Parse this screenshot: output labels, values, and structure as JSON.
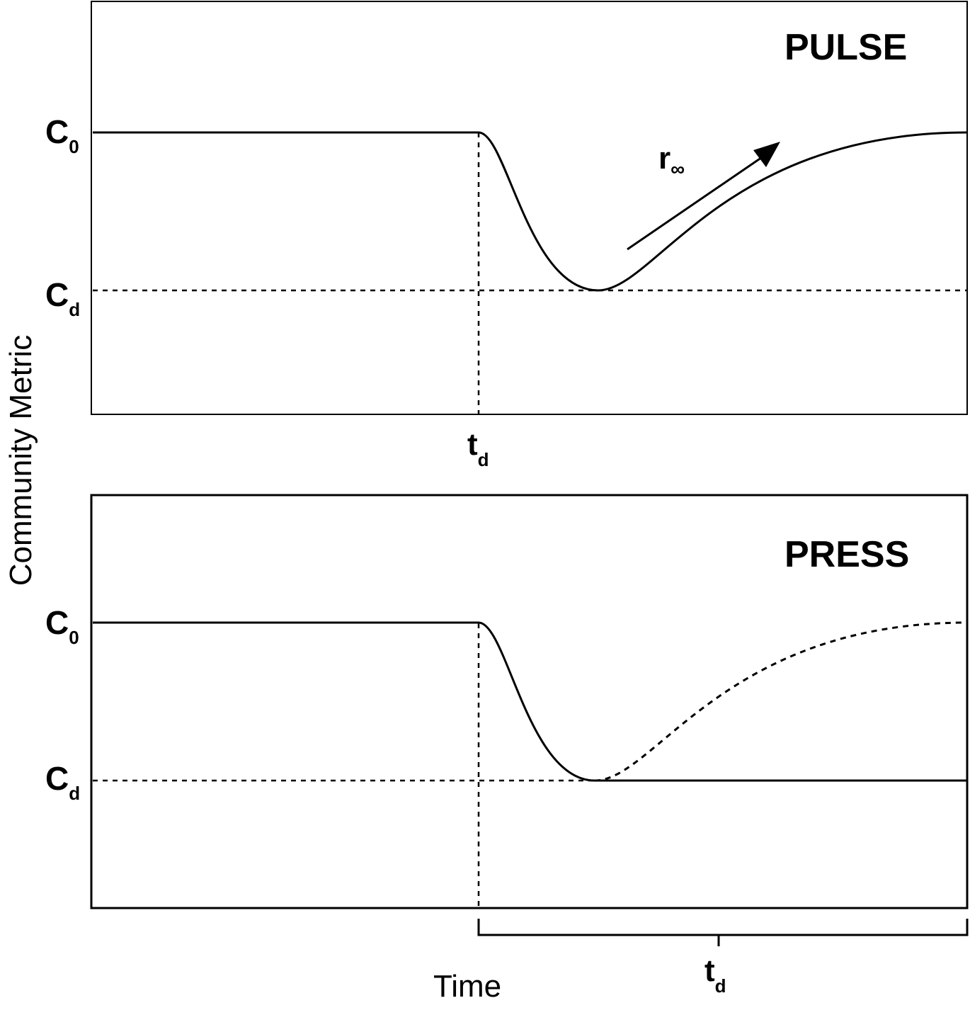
{
  "y_axis_label": "Community Metric",
  "x_axis_label": "Time",
  "colors": {
    "ink": "#000000",
    "background": "#ffffff"
  },
  "pulse_panel": {
    "title": "PULSE",
    "level_c0": {
      "main": "C",
      "sub": "0"
    },
    "level_cd": {
      "main": "C",
      "sub": "d"
    },
    "time_label": {
      "main": "t",
      "sub": "d"
    },
    "rate_label": {
      "main": "r",
      "sub": "∞"
    }
  },
  "press_panel": {
    "title": "PRESS",
    "level_c0": {
      "main": "C",
      "sub": "0"
    },
    "level_cd": {
      "main": "C",
      "sub": "d"
    },
    "duration_label": {
      "main": "t",
      "sub": "d"
    }
  }
}
